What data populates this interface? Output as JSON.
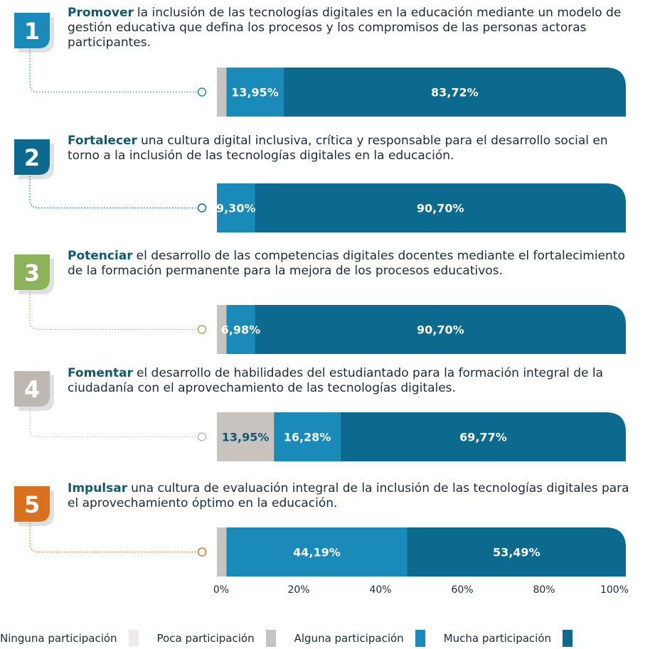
{
  "chart_data": {
    "type": "bar",
    "orientation": "horizontal",
    "stacked": true,
    "categories": [
      "1",
      "2",
      "3",
      "4",
      "5"
    ],
    "category_colors": [
      "#1a8ab8",
      "#0b6a8e",
      "#8db35a",
      "#bdb8b2",
      "#d9701f"
    ],
    "items": [
      {
        "bold": "Promover",
        "text": "la inclusión de las tecnologías digitales en la educación mediante un modelo de gestión educativa que defina los procesos y los compromisos de las personas actoras participantes."
      },
      {
        "bold": "Fortalecer",
        "text": "una cultura digital inclusiva, crítica y responsable para el desarrollo social en torno a la inclusión de las tecnologías digitales en la educación."
      },
      {
        "bold": "Potenciar",
        "text": "el desarrollo de las competencias digitales docentes mediante el fortalecimiento de la formación permanente para la mejora de los procesos educativos."
      },
      {
        "bold": "Fomentar",
        "text": "el desarrollo de habilidades del estudiantado para la formación integral de la ciudadanía con el aprovechamiento de las tecnologías digitales."
      },
      {
        "bold": "Impulsar",
        "text": "una cultura de evaluación integral de la inclusión de las tecnologías digitales para el aprovechamiento óptimo en la educación."
      }
    ],
    "series": [
      {
        "name": "Ninguna participación",
        "color": "#eeebe8",
        "values": [
          0,
          0,
          0,
          0,
          0
        ],
        "value_labels": [
          null,
          null,
          null,
          null,
          null
        ]
      },
      {
        "name": "Poca participación",
        "color": "#c8c3be",
        "values": [
          2.33,
          0,
          2.33,
          13.95,
          2.33
        ],
        "value_labels": [
          null,
          null,
          null,
          "13,95%",
          null
        ]
      },
      {
        "name": "Alguna participación",
        "color": "#1a8ab8",
        "values": [
          13.95,
          9.3,
          6.98,
          16.28,
          44.19
        ],
        "value_labels": [
          "13,95%",
          "9,30%",
          "6,98%",
          "16,28%",
          "44,19%"
        ]
      },
      {
        "name": "Mucha participación",
        "color": "#0b6a8e",
        "values": [
          83.72,
          90.7,
          90.7,
          69.77,
          53.49
        ],
        "value_labels": [
          "83,72%",
          "90,70%",
          "90,70%",
          "69,77%",
          "53,49%"
        ]
      }
    ],
    "xlim": [
      0,
      100
    ],
    "xticks": [
      {
        "value": 0,
        "label": "0%"
      },
      {
        "value": 20,
        "label": "20%"
      },
      {
        "value": 40,
        "label": "40%"
      },
      {
        "value": 60,
        "label": "60%"
      },
      {
        "value": 80,
        "label": "80%"
      },
      {
        "value": 100,
        "label": "100%"
      }
    ]
  }
}
